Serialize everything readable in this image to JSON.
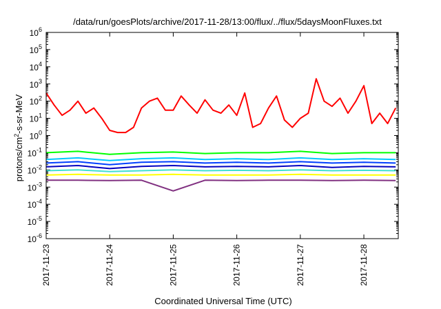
{
  "chart_data": {
    "type": "line",
    "title": "/data/run/goesPlots/archive/2017-11-28/13:00/flux/../flux/5daysMoonFluxes.txt",
    "xlabel": "Coordinated Universal Time (UTC)",
    "ylabel": "protons/cm²-s-sr-MeV",
    "yscale": "log",
    "ylim": [
      1e-06,
      1000000.0
    ],
    "xlim": [
      "2017-11-23T00:00",
      "2017-11-28T13:00"
    ],
    "y_tick_labels": [
      {
        "base": "10",
        "exp": "-6"
      },
      {
        "base": "10",
        "exp": "-5"
      },
      {
        "base": "10",
        "exp": "-4"
      },
      {
        "base": "10",
        "exp": "-3"
      },
      {
        "base": "10",
        "exp": "-2"
      },
      {
        "base": "10",
        "exp": "-1"
      },
      {
        "base": "10",
        "exp": "0"
      },
      {
        "base": "10",
        "exp": "1"
      },
      {
        "base": "10",
        "exp": "2"
      },
      {
        "base": "10",
        "exp": "3"
      },
      {
        "base": "10",
        "exp": "4"
      },
      {
        "base": "10",
        "exp": "5"
      },
      {
        "base": "10",
        "exp": "6"
      }
    ],
    "x_tick_labels": [
      "2017-11-23",
      "2017-11-24",
      "2017-11-25",
      "2017-11-26",
      "2017-11-27",
      "2017-11-28"
    ],
    "grid": false,
    "legend": "none",
    "series": [
      {
        "color": "#ff0000",
        "x": [
          "2017-11-23T00:00",
          "2017-11-23T03:00",
          "2017-11-23T06:00",
          "2017-11-23T09:00",
          "2017-11-23T12:00",
          "2017-11-23T15:00",
          "2017-11-23T18:00",
          "2017-11-23T21:00",
          "2017-11-24T00:00",
          "2017-11-24T03:00",
          "2017-11-24T06:00",
          "2017-11-24T09:00",
          "2017-11-24T12:00",
          "2017-11-24T15:00",
          "2017-11-24T18:00",
          "2017-11-24T21:00",
          "2017-11-25T00:00",
          "2017-11-25T03:00",
          "2017-11-25T06:00",
          "2017-11-25T09:00",
          "2017-11-25T12:00",
          "2017-11-25T15:00",
          "2017-11-25T18:00",
          "2017-11-25T21:00",
          "2017-11-26T00:00",
          "2017-11-26T03:00",
          "2017-11-26T06:00",
          "2017-11-26T09:00",
          "2017-11-26T12:00",
          "2017-11-26T15:00",
          "2017-11-26T18:00",
          "2017-11-26T21:00",
          "2017-11-27T00:00",
          "2017-11-27T03:00",
          "2017-11-27T06:00",
          "2017-11-27T09:00",
          "2017-11-27T12:00",
          "2017-11-27T15:00",
          "2017-11-27T18:00",
          "2017-11-27T21:00",
          "2017-11-28T00:00",
          "2017-11-28T03:00",
          "2017-11-28T06:00",
          "2017-11-28T09:00",
          "2017-11-28T12:00"
        ],
        "values": [
          300,
          60,
          15,
          30,
          100,
          20,
          40,
          10,
          2,
          1.5,
          1.5,
          3,
          40,
          100,
          150,
          30,
          30,
          200,
          60,
          20,
          120,
          30,
          20,
          60,
          15,
          300,
          3,
          5,
          40,
          200,
          8,
          3,
          10,
          20,
          2000,
          100,
          50,
          150,
          20,
          100,
          800,
          5,
          20,
          5,
          40
        ]
      },
      {
        "color": "#00ff00",
        "x": [
          "2017-11-23T00:00",
          "2017-11-23T12:00",
          "2017-11-24T00:00",
          "2017-11-24T12:00",
          "2017-11-25T00:00",
          "2017-11-25T12:00",
          "2017-11-26T00:00",
          "2017-11-26T12:00",
          "2017-11-27T00:00",
          "2017-11-27T12:00",
          "2017-11-28T00:00",
          "2017-11-28T12:00"
        ],
        "values": [
          0.1,
          0.12,
          0.08,
          0.1,
          0.11,
          0.09,
          0.1,
          0.1,
          0.12,
          0.09,
          0.1,
          0.1
        ]
      },
      {
        "color": "#00c8ff",
        "x": [
          "2017-11-23T00:00",
          "2017-11-23T12:00",
          "2017-11-24T00:00",
          "2017-11-24T12:00",
          "2017-11-25T00:00",
          "2017-11-25T12:00",
          "2017-11-26T00:00",
          "2017-11-26T12:00",
          "2017-11-27T00:00",
          "2017-11-27T12:00",
          "2017-11-28T00:00",
          "2017-11-28T12:00"
        ],
        "values": [
          0.04,
          0.05,
          0.035,
          0.045,
          0.05,
          0.04,
          0.045,
          0.04,
          0.05,
          0.04,
          0.045,
          0.04
        ]
      },
      {
        "color": "#0040ff",
        "x": [
          "2017-11-23T00:00",
          "2017-11-23T12:00",
          "2017-11-24T00:00",
          "2017-11-24T12:00",
          "2017-11-25T00:00",
          "2017-11-25T12:00",
          "2017-11-26T00:00",
          "2017-11-26T12:00",
          "2017-11-27T00:00",
          "2017-11-27T12:00",
          "2017-11-28T00:00",
          "2017-11-28T12:00"
        ],
        "values": [
          0.025,
          0.03,
          0.02,
          0.028,
          0.03,
          0.025,
          0.028,
          0.025,
          0.03,
          0.025,
          0.028,
          0.025
        ]
      },
      {
        "color": "#0000c0",
        "x": [
          "2017-11-23T00:00",
          "2017-11-23T12:00",
          "2017-11-24T00:00",
          "2017-11-24T12:00",
          "2017-11-25T00:00",
          "2017-11-25T12:00",
          "2017-11-26T00:00",
          "2017-11-26T12:00",
          "2017-11-27T00:00",
          "2017-11-27T12:00",
          "2017-11-28T00:00",
          "2017-11-28T12:00"
        ],
        "values": [
          0.015,
          0.018,
          0.012,
          0.016,
          0.018,
          0.015,
          0.016,
          0.015,
          0.018,
          0.014,
          0.016,
          0.015
        ]
      },
      {
        "color": "#40e0d0",
        "x": [
          "2017-11-23T00:00",
          "2017-11-23T12:00",
          "2017-11-24T00:00",
          "2017-11-24T12:00",
          "2017-11-25T00:00",
          "2017-11-25T12:00",
          "2017-11-26T00:00",
          "2017-11-26T12:00",
          "2017-11-27T00:00",
          "2017-11-27T12:00",
          "2017-11-28T00:00",
          "2017-11-28T12:00"
        ],
        "values": [
          0.009,
          0.01,
          0.008,
          0.009,
          0.01,
          0.009,
          0.0095,
          0.009,
          0.01,
          0.009,
          0.0095,
          0.009
        ]
      },
      {
        "color": "#ffff00",
        "x": [
          "2017-11-23T00:00",
          "2017-11-23T12:00",
          "2017-11-24T00:00",
          "2017-11-24T12:00",
          "2017-11-25T00:00",
          "2017-11-25T12:00",
          "2017-11-26T00:00",
          "2017-11-26T12:00",
          "2017-11-27T00:00",
          "2017-11-27T12:00",
          "2017-11-28T00:00",
          "2017-11-28T12:00"
        ],
        "values": [
          0.005,
          0.0055,
          0.005,
          0.005,
          0.0055,
          0.005,
          0.005,
          0.005,
          0.0055,
          0.005,
          0.005,
          0.005
        ]
      },
      {
        "color": "#803080",
        "x": [
          "2017-11-23T00:00",
          "2017-11-23T12:00",
          "2017-11-24T00:00",
          "2017-11-24T12:00",
          "2017-11-25T00:00",
          "2017-11-25T12:00",
          "2017-11-26T00:00",
          "2017-11-26T12:00",
          "2017-11-27T00:00",
          "2017-11-27T12:00",
          "2017-11-28T00:00",
          "2017-11-28T12:00"
        ],
        "values": [
          0.0025,
          0.0025,
          0.0024,
          0.0025,
          0.0006,
          0.0025,
          0.0024,
          0.0025,
          0.0025,
          0.0024,
          0.0025,
          0.0024
        ]
      }
    ]
  }
}
